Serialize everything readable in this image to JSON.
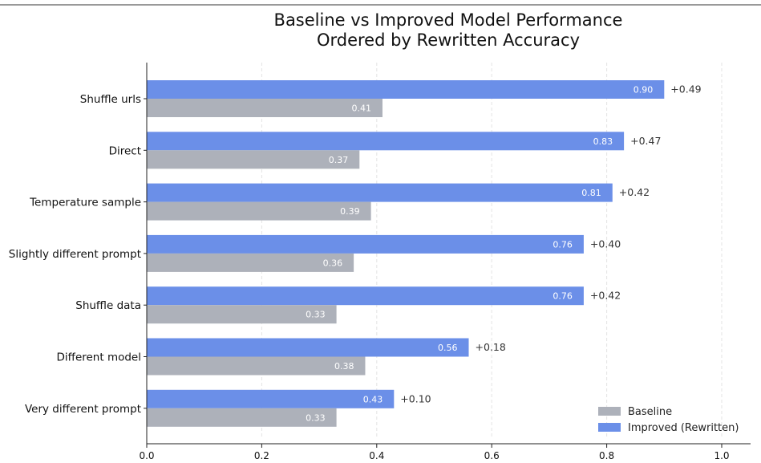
{
  "chart_data": {
    "type": "bar",
    "orientation": "horizontal",
    "title_lines": [
      "Baseline vs Improved Model Performance",
      "Ordered by Rewritten Accuracy"
    ],
    "categories": [
      "Shuffle urls",
      "Direct",
      "Temperature sample",
      "Slightly different prompt",
      "Shuffle data",
      "Different model",
      "Very different prompt"
    ],
    "series": [
      {
        "name": "Baseline",
        "color": "#adb1ba",
        "values": [
          0.41,
          0.37,
          0.39,
          0.36,
          0.33,
          0.38,
          0.33
        ],
        "labels": [
          "0.41",
          "0.37",
          "0.39",
          "0.36",
          "0.33",
          "0.38",
          "0.33"
        ]
      },
      {
        "name": "Improved (Rewritten)",
        "color": "#6b8fe8",
        "values": [
          0.9,
          0.83,
          0.81,
          0.76,
          0.76,
          0.56,
          0.43
        ],
        "labels": [
          "0.90",
          "0.83",
          "0.81",
          "0.76",
          "0.76",
          "0.56",
          "0.43"
        ]
      }
    ],
    "deltas": [
      "+0.49",
      "+0.47",
      "+0.42",
      "+0.40",
      "+0.42",
      "+0.18",
      "+0.10"
    ],
    "x_ticks": [
      "0.0",
      "0.2",
      "0.4",
      "0.6",
      "0.8",
      "1.0"
    ],
    "xlim": [
      0,
      1.05
    ],
    "grid": "vertical dashed",
    "legend_position": "bottom-right"
  }
}
